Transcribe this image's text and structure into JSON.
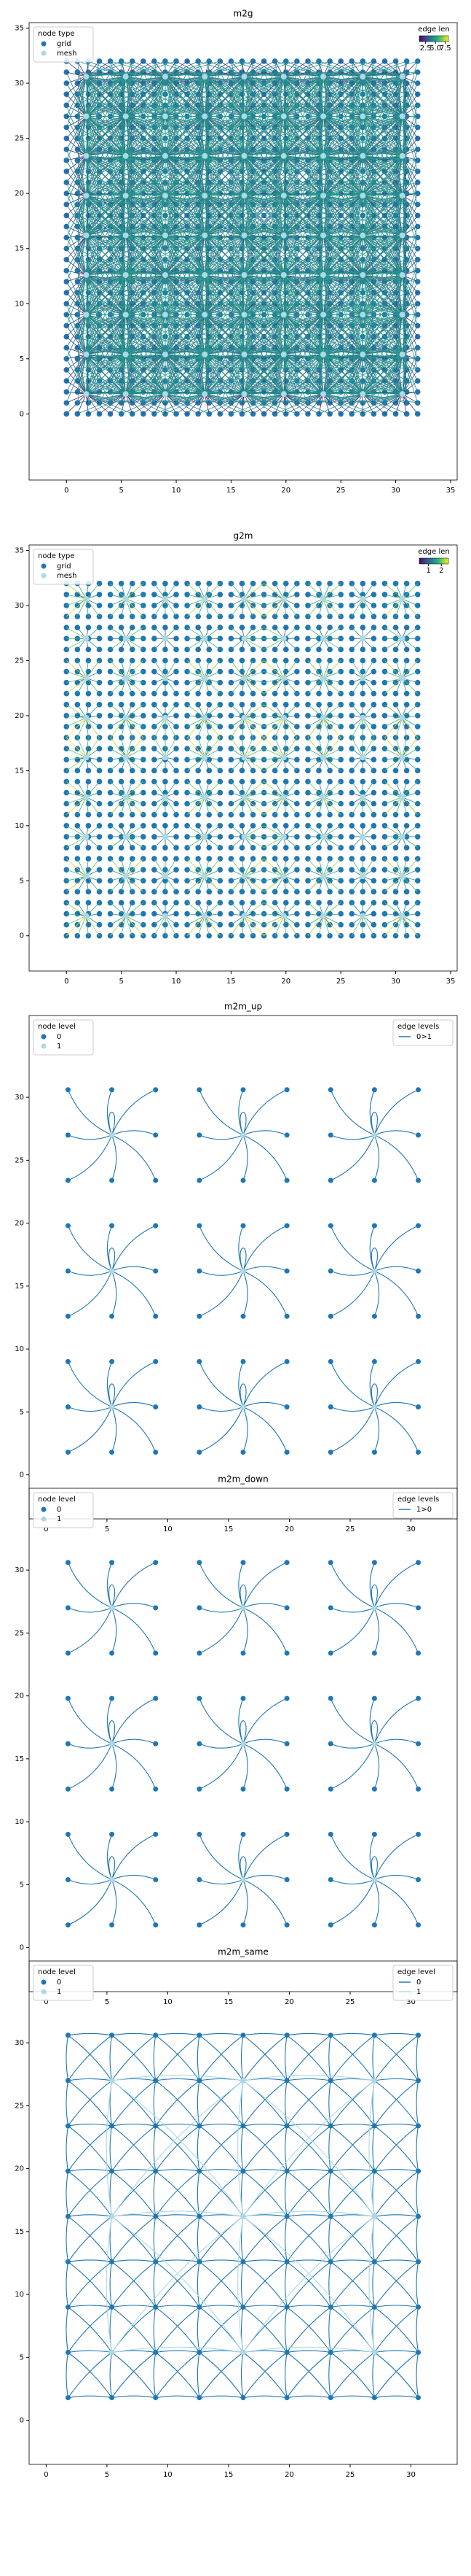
{
  "chart_data": [
    {
      "type": "proximity",
      "title": "m2g",
      "node_legend": {
        "title": "node type",
        "loc": "upper left"
      },
      "nodes": [
        {
          "name": "grid",
          "color": "#1f77b4",
          "x": [
            0,
            1,
            2,
            3,
            4,
            5,
            6,
            7,
            8,
            9,
            10,
            11,
            12,
            13,
            14,
            15,
            16,
            17,
            18,
            19,
            20,
            21,
            22,
            23,
            24,
            25,
            26,
            27,
            28,
            29,
            30,
            31,
            32
          ],
          "y": [
            0,
            1,
            2,
            3,
            4,
            5,
            6,
            7,
            8,
            9,
            10,
            11,
            12,
            13,
            14,
            15,
            16,
            17,
            18,
            19,
            20,
            21,
            22,
            23,
            24,
            25,
            26,
            27,
            28,
            29,
            30,
            31,
            32
          ]
        },
        {
          "name": "mesh",
          "color": "#add8e6",
          "x": [
            1.8,
            5.4,
            9,
            12.6,
            16.2,
            19.8,
            23.4,
            27,
            30.6
          ],
          "y": [
            1.8,
            5.4,
            9,
            12.6,
            16.2,
            19.8,
            23.4,
            27,
            30.6
          ]
        }
      ],
      "colorbar": {
        "label": "edge len",
        "cmap": "viridis",
        "loc": "upper right",
        "lim": [
          0.9,
          8.3
        ],
        "ticks": [
          2.5,
          {
            "value": 5,
            "label": "5.0"
          },
          7.5
        ]
      },
      "xlim": [
        -3.4,
        35.6
      ],
      "ylim": [
        -6,
        35.5
      ],
      "xticks": [
        0,
        5,
        10,
        15,
        20,
        25,
        30,
        35
      ],
      "yticks": [
        0,
        5,
        10,
        15,
        20,
        25,
        30,
        35
      ]
    },
    {
      "type": "voronoi",
      "title": "g2m",
      "node_legend": {
        "title": "node type",
        "loc": "upper left"
      },
      "nodes": [
        {
          "name": "grid",
          "color": "#1f77b4",
          "x": [
            0,
            1,
            2,
            3,
            4,
            5,
            6,
            7,
            8,
            9,
            10,
            11,
            12,
            13,
            14,
            15,
            16,
            17,
            18,
            19,
            20,
            21,
            22,
            23,
            24,
            25,
            26,
            27,
            28,
            29,
            30,
            31,
            32
          ],
          "y": [
            0,
            1,
            2,
            3,
            4,
            5,
            6,
            7,
            8,
            9,
            10,
            11,
            12,
            13,
            14,
            15,
            16,
            17,
            18,
            19,
            20,
            21,
            22,
            23,
            24,
            25,
            26,
            27,
            28,
            29,
            30,
            31,
            32
          ]
        },
        {
          "name": "mesh",
          "color": "#add8e6",
          "x": [
            1.8,
            5.4,
            9,
            12.6,
            16.2,
            19.8,
            23.4,
            27,
            30.6
          ],
          "y": [
            1.8,
            5.4,
            9,
            12.6,
            16.2,
            19.8,
            23.4,
            27,
            30.6
          ]
        }
      ],
      "colorbar": {
        "label": "edge len",
        "cmap": "viridis",
        "loc": "upper right",
        "lim": [
          0.28,
          2.55
        ],
        "ticks": [
          1,
          2
        ]
      },
      "xlim": [
        -3.4,
        35.6
      ],
      "ylim": [
        -3.2,
        35.5
      ],
      "xticks": [
        0,
        5,
        10,
        15,
        20,
        25,
        30,
        35
      ],
      "yticks": [
        0,
        5,
        10,
        15,
        20,
        25,
        30,
        35
      ]
    },
    {
      "type": "hierarchy",
      "title": "m2m_up",
      "node_legend": {
        "title": "node level",
        "loc": "upper left"
      },
      "nodes": [
        {
          "name": "0",
          "color": "#1f77b4",
          "x": [
            1.8,
            5.4,
            9,
            12.6,
            16.2,
            19.8,
            23.4,
            27,
            30.6
          ],
          "y": [
            1.8,
            5.4,
            9,
            12.6,
            16.2,
            19.8,
            23.4,
            27,
            30.6
          ]
        },
        {
          "name": "1",
          "color": "#add8e6",
          "x": [
            5.4,
            16.2,
            27
          ],
          "y": [
            5.4,
            16.2,
            27
          ]
        }
      ],
      "edge_legend": {
        "title": "edge levels",
        "loc": "upper right"
      },
      "edges": [
        {
          "name": "0>1",
          "color": "#1f77b4"
        }
      ],
      "xlim": [
        -1.4,
        33.8
      ],
      "ylim": [
        -3.5,
        36.5
      ],
      "xticks": [
        0,
        5,
        10,
        15,
        20,
        25,
        30
      ],
      "yticks": [
        0,
        5,
        10,
        15,
        20,
        25,
        30
      ]
    },
    {
      "type": "hierarchy",
      "title": "m2m_down",
      "node_legend": {
        "title": "node level",
        "loc": "upper left"
      },
      "nodes": [
        {
          "name": "0",
          "color": "#1f77b4",
          "x": [
            1.8,
            5.4,
            9,
            12.6,
            16.2,
            19.8,
            23.4,
            27,
            30.6
          ],
          "y": [
            1.8,
            5.4,
            9,
            12.6,
            16.2,
            19.8,
            23.4,
            27,
            30.6
          ]
        },
        {
          "name": "1",
          "color": "#add8e6",
          "x": [
            5.4,
            16.2,
            27
          ],
          "y": [
            5.4,
            16.2,
            27
          ]
        }
      ],
      "edge_legend": {
        "title": "edge levels",
        "loc": "upper right"
      },
      "edges": [
        {
          "name": "1>0",
          "color": "#1f77b4"
        }
      ],
      "xlim": [
        -1.4,
        33.8
      ],
      "ylim": [
        -3.5,
        36.5
      ],
      "xticks": [
        0,
        5,
        10,
        15,
        20,
        25,
        30
      ],
      "yticks": [
        0,
        5,
        10,
        15,
        20,
        25,
        30
      ]
    },
    {
      "type": "lattice",
      "title": "m2m_same",
      "node_legend": {
        "title": "node level",
        "loc": "upper left"
      },
      "nodes": [
        {
          "name": "0",
          "color": "#1f77b4",
          "x": [
            1.8,
            5.4,
            9,
            12.6,
            16.2,
            19.8,
            23.4,
            27,
            30.6
          ],
          "y": [
            1.8,
            5.4,
            9,
            12.6,
            16.2,
            19.8,
            23.4,
            27,
            30.6
          ]
        },
        {
          "name": "1",
          "color": "#add8e6",
          "x": [
            5.4,
            16.2,
            27
          ],
          "y": [
            5.4,
            16.2,
            27
          ]
        }
      ],
      "edge_legend": {
        "title": "edge level",
        "loc": "upper right"
      },
      "edges": [
        {
          "name": "0",
          "color": "#1f77b4"
        },
        {
          "name": "1",
          "color": "#add8e6"
        }
      ],
      "xlim": [
        -1.4,
        33.8
      ],
      "ylim": [
        -3.5,
        36.5
      ],
      "xticks": [
        0,
        5,
        10,
        15,
        20,
        25,
        30
      ],
      "yticks": [
        0,
        5,
        10,
        15,
        20,
        25,
        30
      ]
    }
  ]
}
